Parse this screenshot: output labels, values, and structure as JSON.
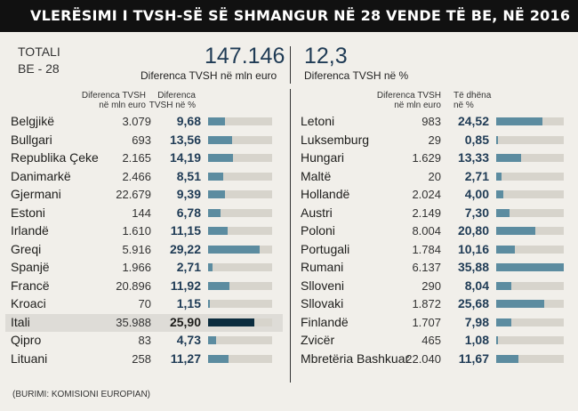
{
  "title": "VLERËSIMI I TVSH-SË SË SHMANGUR NË 28 VENDE TË BE, NË 2016",
  "total": {
    "label_line1": "TOTALI",
    "label_line2": "BE - 28",
    "value_mln": "147.146",
    "value_mln_label": "Diferenca TVSH në mln euro",
    "value_pct": "12,3",
    "value_pct_label": "Diferenca TVSH në %"
  },
  "headers": {
    "left_col1_line1": "Diferenca TVSH",
    "left_col1_line2": "në mln euro",
    "left_col2_line1": "Diferenca",
    "left_col2_line2": "TVSH në %",
    "right_col1_line1": "Diferenca TVSH",
    "right_col1_line2": "në mln euro",
    "right_col2_line1": "Të dhëna",
    "right_col2_line2": "në %"
  },
  "source": "(BURIMI: KOMISIONI EUROPIAN)",
  "colors": {
    "bar": "#5c8ca0",
    "highlight_bar": "#0c2d3f",
    "track": "#d7d4cc",
    "header_bg": "#111111"
  },
  "chart_data": {
    "type": "bar",
    "title": "VLERËSIMI I TVSH-SË SË SHMANGUR NË 28 VENDE TË BE, NË 2016",
    "value_label": "Diferenca TVSH në %",
    "xlim": [
      0,
      36
    ],
    "highlight": "Itali",
    "left": [
      {
        "country": "Belgjikë",
        "mln": "3.079",
        "pct_label": "9,68",
        "pct": 9.68
      },
      {
        "country": "Bullgari",
        "mln": "693",
        "pct_label": "13,56",
        "pct": 13.56
      },
      {
        "country": "Republika Çeke",
        "mln": "2.165",
        "pct_label": "14,19",
        "pct": 14.19
      },
      {
        "country": "Danimarkë",
        "mln": "2.466",
        "pct_label": "8,51",
        "pct": 8.51
      },
      {
        "country": "Gjermani",
        "mln": "22.679",
        "pct_label": "9,39",
        "pct": 9.39
      },
      {
        "country": "Estoni",
        "mln": "144",
        "pct_label": "6,78",
        "pct": 6.78
      },
      {
        "country": "Irlandë",
        "mln": "1.610",
        "pct_label": "11,15",
        "pct": 11.15
      },
      {
        "country": "Greqi",
        "mln": "5.916",
        "pct_label": "29,22",
        "pct": 29.22
      },
      {
        "country": "Spanjë",
        "mln": "1.966",
        "pct_label": "2,71",
        "pct": 2.71
      },
      {
        "country": "Francë",
        "mln": "20.896",
        "pct_label": "11,92",
        "pct": 11.92
      },
      {
        "country": "Kroaci",
        "mln": "70",
        "pct_label": "1,15",
        "pct": 1.15
      },
      {
        "country": "Itali",
        "mln": "35.988",
        "pct_label": "25,90",
        "pct": 25.9
      },
      {
        "country": "Qipro",
        "mln": "83",
        "pct_label": "4,73",
        "pct": 4.73
      },
      {
        "country": "Lituani",
        "mln": "258",
        "pct_label": "11,27",
        "pct": 11.27
      }
    ],
    "right": [
      {
        "country": "Letoni",
        "mln": "983",
        "pct_label": "24,52",
        "pct": 24.52
      },
      {
        "country": "Luksemburg",
        "mln": "29",
        "pct_label": "0,85",
        "pct": 0.85
      },
      {
        "country": "Hungari",
        "mln": "1.629",
        "pct_label": "13,33",
        "pct": 13.33
      },
      {
        "country": "Maltë",
        "mln": "20",
        "pct_label": "2,71",
        "pct": 2.71
      },
      {
        "country": "Hollandë",
        "mln": "2.024",
        "pct_label": "4,00",
        "pct": 4.0
      },
      {
        "country": "Austri",
        "mln": "2.149",
        "pct_label": "7,30",
        "pct": 7.3
      },
      {
        "country": "Poloni",
        "mln": "8.004",
        "pct_label": "20,80",
        "pct": 20.8
      },
      {
        "country": "Portugali",
        "mln": "1.784",
        "pct_label": "10,16",
        "pct": 10.16
      },
      {
        "country": "Rumani",
        "mln": "6.137",
        "pct_label": "35,88",
        "pct": 35.88
      },
      {
        "country": "Slloveni",
        "mln": "290",
        "pct_label": "8,04",
        "pct": 8.04
      },
      {
        "country": "Sllovaki",
        "mln": "1.872",
        "pct_label": "25,68",
        "pct": 25.68
      },
      {
        "country": "Finlandë",
        "mln": "1.707",
        "pct_label": "7,98",
        "pct": 7.98
      },
      {
        "country": "Zvicër",
        "mln": "465",
        "pct_label": "1,08",
        "pct": 1.08
      },
      {
        "country": "Mbretëria Bashkuar",
        "mln": "22.040",
        "pct_label": "11,67",
        "pct": 11.67
      }
    ]
  }
}
